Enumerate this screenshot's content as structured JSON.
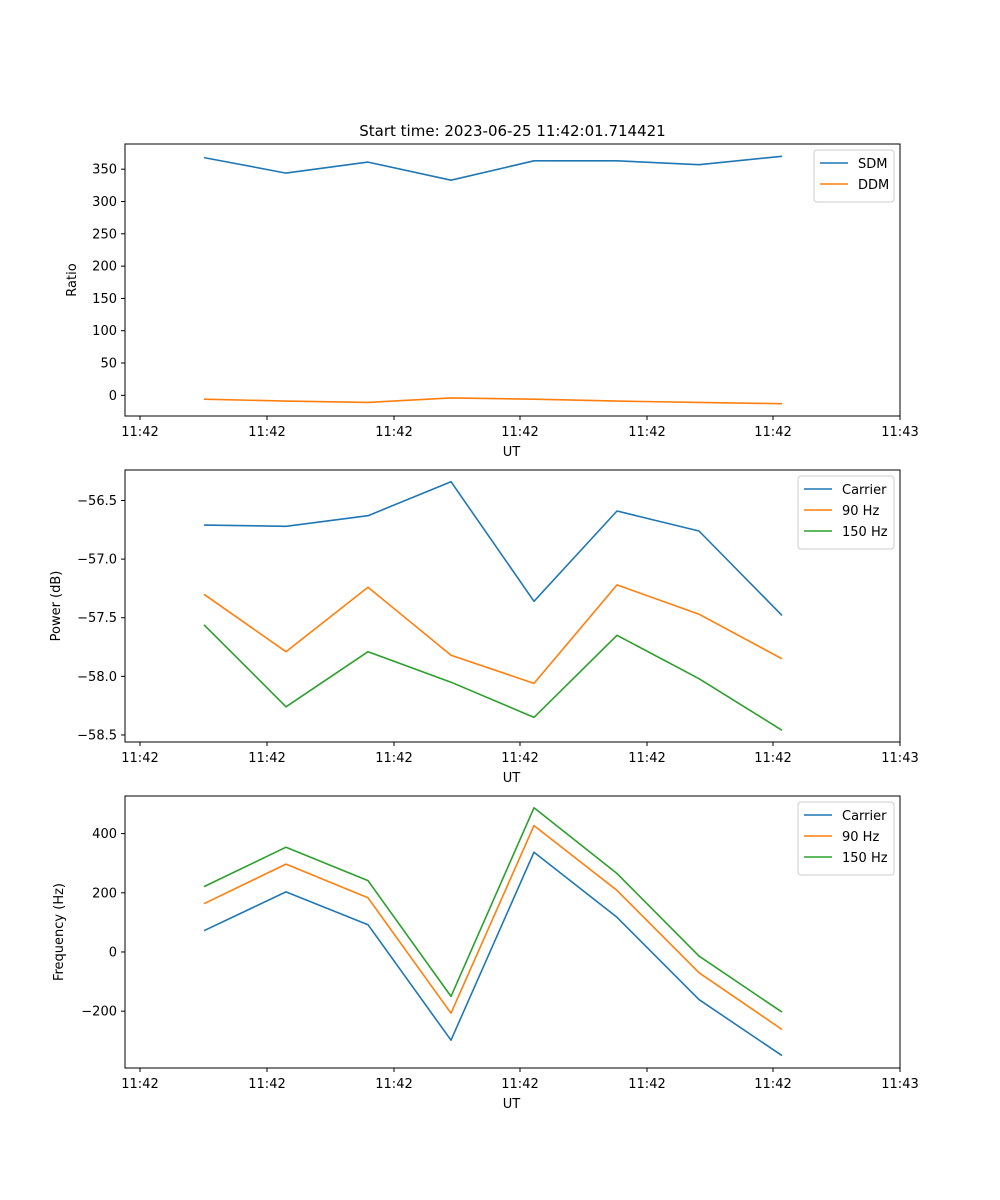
{
  "title": "Start time: 2023-06-25 11:42:01.714421",
  "colors": {
    "blue": "#1f77b4",
    "orange": "#ff7f0e",
    "green": "#2ca02c"
  },
  "chart_data": [
    {
      "type": "line",
      "xlabel": "UT",
      "ylabel": "Ratio",
      "x_tick_labels": [
        "11:42",
        "11:42",
        "11:42",
        "11:42",
        "11:42",
        "11:42",
        "11:43"
      ],
      "y_ticks": [
        0,
        50,
        100,
        150,
        200,
        250,
        300,
        350
      ],
      "ylim": [
        -32,
        389
      ],
      "legend_position": "upper right",
      "grid": false,
      "series": [
        {
          "name": "SDM",
          "color": "#1f77b4",
          "values": [
            368,
            344,
            361,
            333,
            363,
            363,
            357,
            370
          ]
        },
        {
          "name": "DDM",
          "color": "#ff7f0e",
          "values": [
            -6,
            -9,
            -11,
            -4,
            -6,
            -9,
            -11,
            -13
          ]
        }
      ]
    },
    {
      "type": "line",
      "xlabel": "UT",
      "ylabel": "Power (dB)",
      "x_tick_labels": [
        "11:42",
        "11:42",
        "11:42",
        "11:42",
        "11:42",
        "11:42",
        "11:43"
      ],
      "y_ticks": [
        -56.5,
        -57.0,
        -57.5,
        -58.0,
        -58.5
      ],
      "y_tick_labels": [
        "−56.5",
        "−57.0",
        "−57.5",
        "−58.0",
        "−58.5"
      ],
      "ylim": [
        -58.56,
        -56.24
      ],
      "legend_position": "upper right",
      "grid": false,
      "series": [
        {
          "name": "Carrier",
          "color": "#1f77b4",
          "values": [
            -56.71,
            -56.72,
            -56.63,
            -56.34,
            -57.36,
            -56.59,
            -56.76,
            -57.48
          ]
        },
        {
          "name": "90 Hz",
          "color": "#ff7f0e",
          "values": [
            -57.3,
            -57.79,
            -57.24,
            -57.82,
            -58.06,
            -57.22,
            -57.47,
            -57.85
          ]
        },
        {
          "name": "150 Hz",
          "color": "#2ca02c",
          "values": [
            -57.56,
            -58.26,
            -57.79,
            -58.05,
            -58.35,
            -57.65,
            -58.02,
            -58.46
          ]
        }
      ]
    },
    {
      "type": "line",
      "xlabel": "UT",
      "ylabel": "Frequency (Hz)",
      "x_tick_labels": [
        "11:42",
        "11:42",
        "11:42",
        "11:42",
        "11:42",
        "11:42",
        "11:43"
      ],
      "y_ticks": [
        -200,
        0,
        200,
        400
      ],
      "y_tick_labels": [
        "−200",
        "0",
        "200",
        "400"
      ],
      "ylim": [
        -392,
        527
      ],
      "legend_position": "upper right",
      "grid": false,
      "series": [
        {
          "name": "Carrier",
          "color": "#1f77b4",
          "values": [
            72,
            203,
            92,
            -298,
            337,
            117,
            -161,
            -350
          ]
        },
        {
          "name": "90 Hz",
          "color": "#ff7f0e",
          "values": [
            163,
            297,
            183,
            -207,
            427,
            208,
            -70,
            -262
          ]
        },
        {
          "name": "150 Hz",
          "color": "#2ca02c",
          "values": [
            221,
            354,
            241,
            -150,
            487,
            265,
            -14,
            -203
          ]
        }
      ]
    }
  ]
}
